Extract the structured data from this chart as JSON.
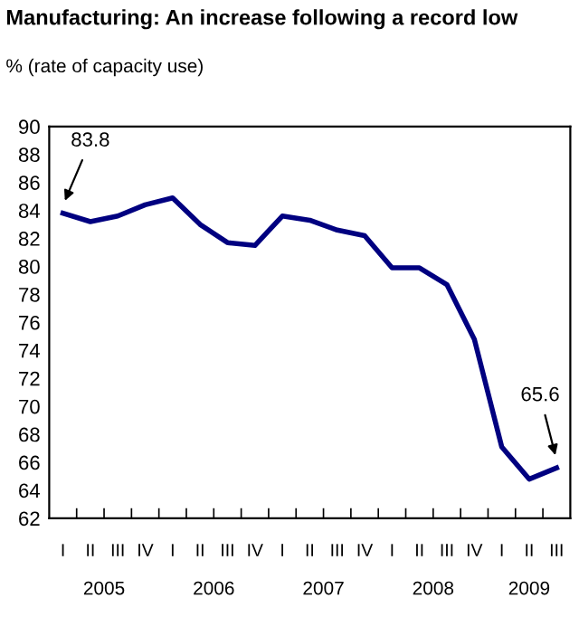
{
  "chart_data": {
    "type": "line",
    "title": "Manufacturing: An increase following a record low",
    "ylabel": "% (rate of capacity use)",
    "categories": [
      "I",
      "II",
      "III",
      "IV",
      "I",
      "II",
      "III",
      "IV",
      "I",
      "II",
      "III",
      "IV",
      "I",
      "II",
      "III",
      "IV",
      "I",
      "II",
      "III"
    ],
    "series": [
      {
        "color": "#000080",
        "values": [
          83.8,
          83.2,
          83.6,
          84.4,
          84.9,
          83.0,
          81.7,
          81.5,
          83.6,
          83.3,
          82.6,
          82.2,
          79.9,
          79.9,
          78.7,
          74.8,
          67.1,
          64.8,
          65.6
        ]
      }
    ],
    "ylim": [
      62,
      90
    ],
    "yticks": [
      62,
      64,
      66,
      68,
      70,
      72,
      74,
      76,
      78,
      80,
      82,
      84,
      86,
      88,
      90
    ],
    "annotations": [
      "83.8",
      "65.6",
      "2005",
      "2006",
      "2007",
      "2008",
      "2009"
    ],
    "grid": false,
    "legend": false,
    "line_style": "solid",
    "marker": "none"
  }
}
